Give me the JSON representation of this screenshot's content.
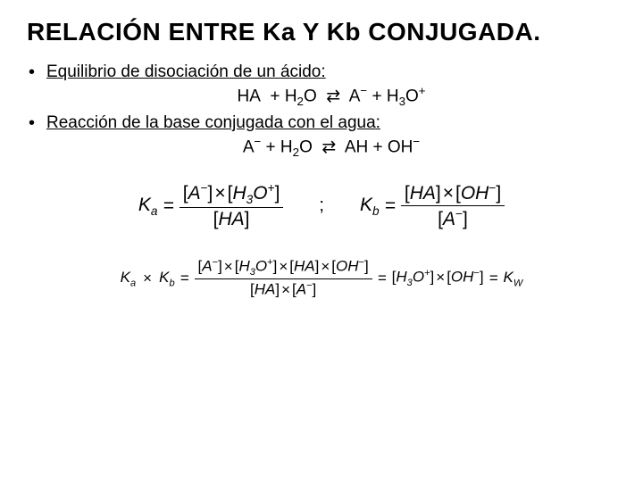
{
  "title": "RELACIÓN ENTRE Ka Y Kb CONJUGADA.",
  "bullet1": "Equilibrio de disociación de un ácido",
  "bullet2": "Reacción de la base conjugada con el agua",
  "eq1_lhs_a": "HA",
  "eq1_lhs_b": "H",
  "eq1_lhs_b_sub": "2",
  "eq1_lhs_b_tail": "O",
  "eq1_arrow": "⇄",
  "eq1_rhs_a": "A",
  "eq1_rhs_a_sup": "−",
  "eq1_rhs_b": "H",
  "eq1_rhs_b_sub": "3",
  "eq1_rhs_b_tail": "O",
  "eq1_rhs_b_sup": "+",
  "eq2_lhs_a": "A",
  "eq2_lhs_a_sup": "−",
  "eq2_lhs_b": "H",
  "eq2_lhs_b_sub": "2",
  "eq2_lhs_b_tail": "O",
  "eq2_arrow": "⇄",
  "eq2_rhs_a": "AH",
  "eq2_rhs_b": "OH",
  "eq2_rhs_b_sup": "−",
  "ka_label": "K",
  "ka_sub": "a",
  "kb_label": "K",
  "kb_sub": "b",
  "kw_label": "K",
  "kw_sub": "W",
  "semicolon": ";",
  "species_A": "A",
  "species_A_sup": "−",
  "species_H3O": "H",
  "species_H3O_sub": "3",
  "species_H3O_tail": "O",
  "species_H3O_sup": "+",
  "species_HA": "HA",
  "species_OH": "OH",
  "species_OH_sup": "−",
  "times_sym": "×",
  "equals": "="
}
